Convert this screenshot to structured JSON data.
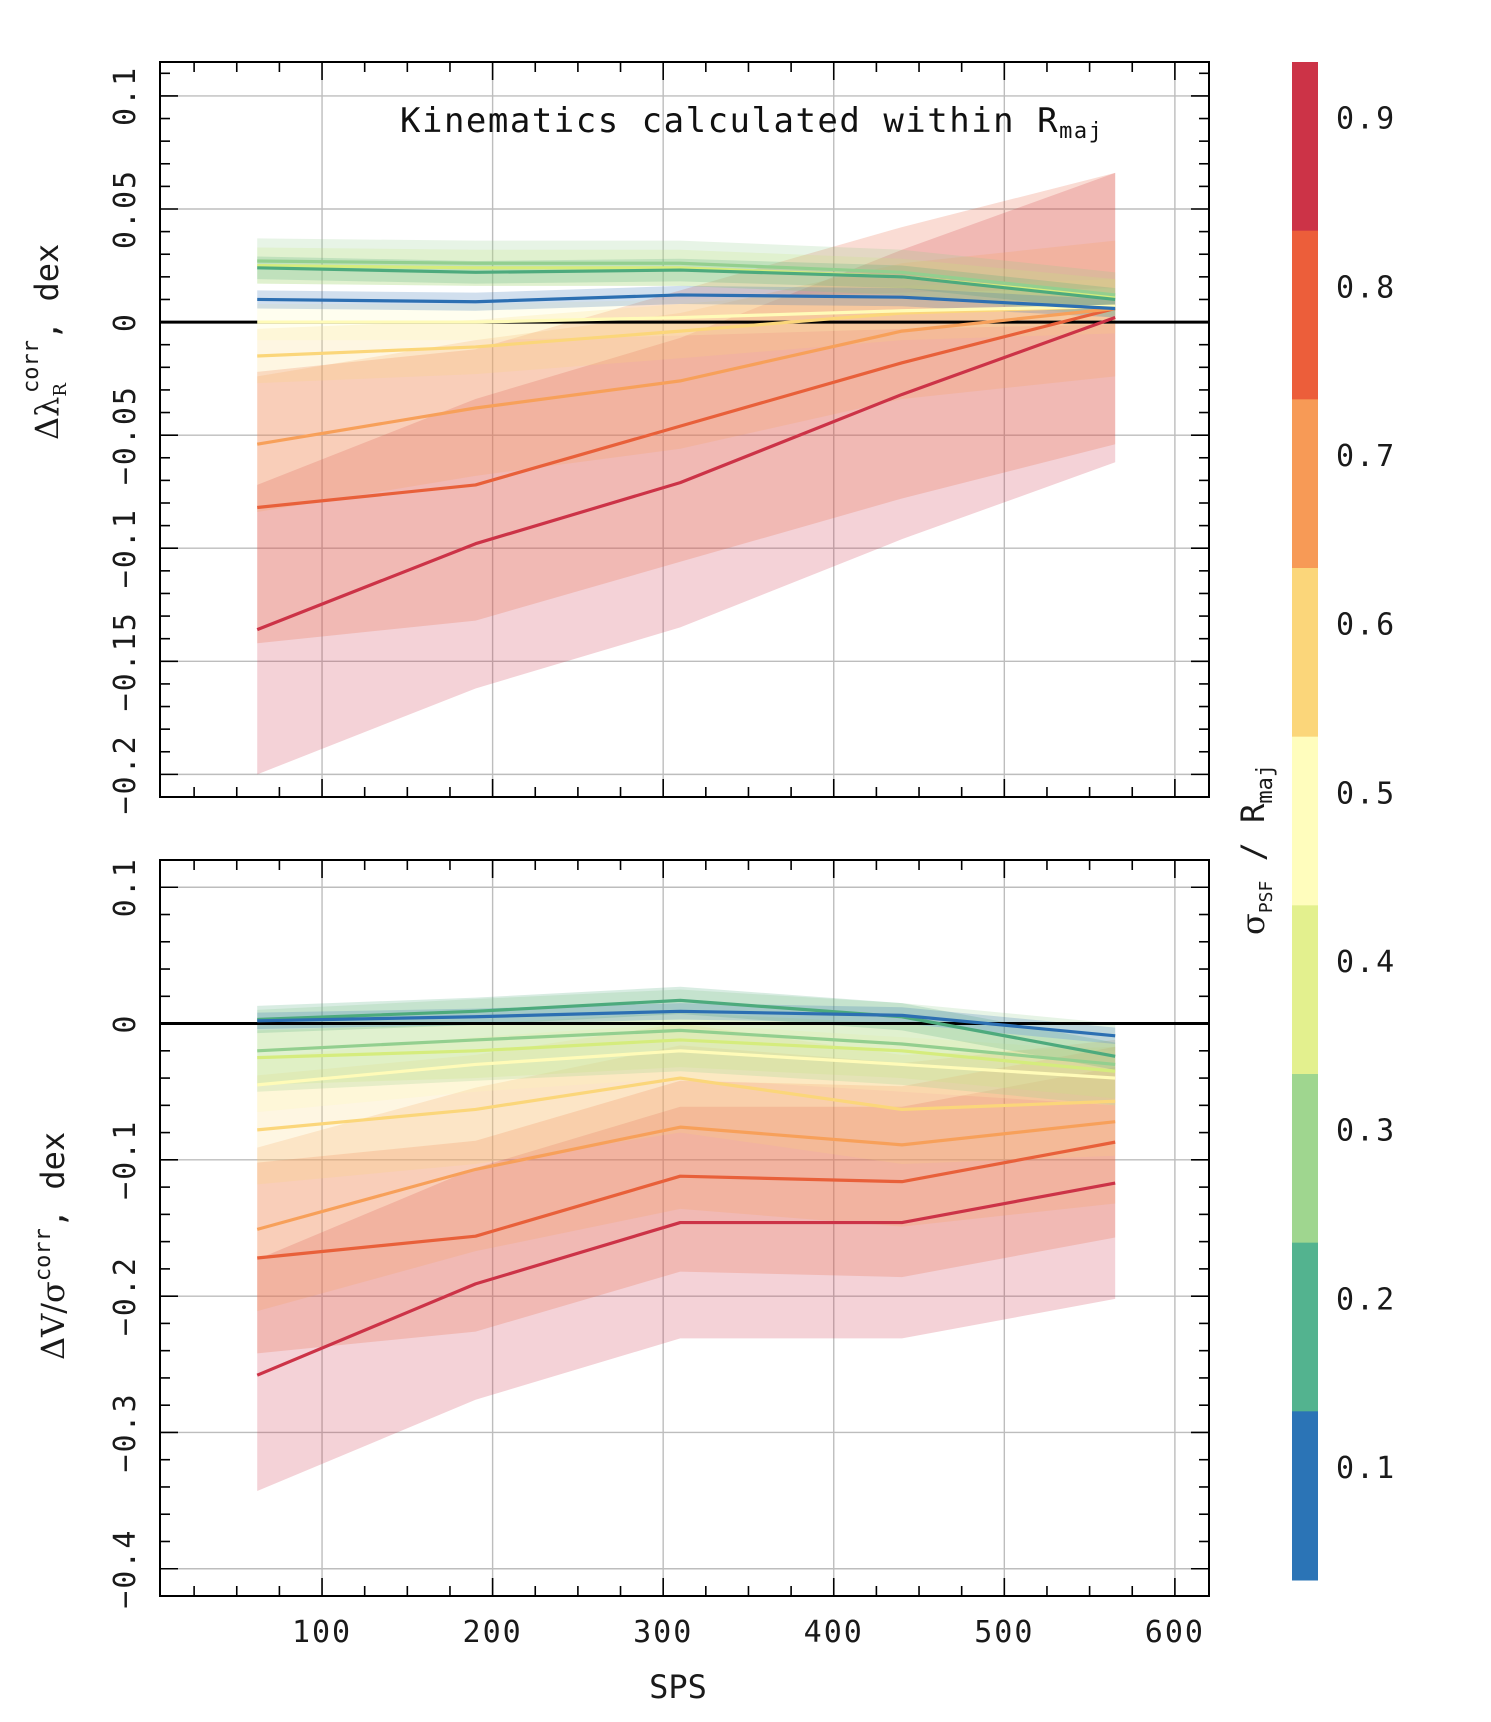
{
  "chart_data": [
    {
      "type": "line",
      "panel": "top",
      "annotation": "Kinematics calculated within R",
      "annotation_sub": "maj",
      "ylabel_main": "Δλ",
      "ylabel_sub": "R",
      "ylabel_sup": "corr",
      "ylabel_suffix": ", dex",
      "xlabel": "",
      "xlim": [
        5,
        620
      ],
      "ylim": [
        -0.21,
        0.115
      ],
      "xticks": [
        100,
        200,
        300,
        400,
        500,
        600
      ],
      "yticks": [
        -0.2,
        -0.15,
        -0.1,
        -0.05,
        0,
        0.05,
        0.1
      ],
      "ytick_labels": [
        "−0.2",
        "−0.15",
        "−0.1",
        "−0.05",
        "0",
        "0.05",
        "0.1"
      ],
      "grid": true,
      "reference_line": 0,
      "x": [
        62,
        190,
        310,
        440,
        565
      ],
      "series": [
        {
          "name": "0.1",
          "color": "#2c6fb2",
          "values": [
            0.01,
            0.009,
            0.012,
            0.011,
            0.006
          ],
          "band": 0.004
        },
        {
          "name": "0.2",
          "color": "#4daa7d",
          "values": [
            0.024,
            0.022,
            0.023,
            0.02,
            0.01
          ],
          "band": 0.005
        },
        {
          "name": "0.3",
          "color": "#93cf8f",
          "values": [
            0.027,
            0.026,
            0.026,
            0.022,
            0.012
          ],
          "band": 0.01
        },
        {
          "name": "0.4",
          "color": "#d5ec7d",
          "values": [
            0.025,
            0.024,
            0.024,
            0.02,
            0.011
          ],
          "band": 0.008
        },
        {
          "name": "0.5",
          "color": "#fffbb8",
          "values": [
            0.0,
            0.0,
            0.002,
            0.005,
            0.007
          ],
          "band": 0.008
        },
        {
          "name": "0.6",
          "color": "#fbd67a",
          "values": [
            -0.015,
            -0.011,
            -0.004,
            0.004,
            0.007
          ],
          "band": 0.012
        },
        {
          "name": "0.7",
          "color": "#f7a05a",
          "values": [
            -0.054,
            -0.038,
            -0.026,
            -0.004,
            0.006
          ],
          "band": 0.03
        },
        {
          "name": "0.8",
          "color": "#e8603a",
          "values": [
            -0.082,
            -0.072,
            -0.046,
            -0.018,
            0.006
          ],
          "band": 0.06
        },
        {
          "name": "0.9",
          "color": "#cc3347",
          "values": [
            -0.136,
            -0.098,
            -0.071,
            -0.032,
            0.002
          ],
          "band": 0.064
        }
      ]
    },
    {
      "type": "line",
      "panel": "bottom",
      "ylabel_main": "ΔV/σ",
      "ylabel_sup": "corr",
      "ylabel_suffix": ", dex",
      "xlabel": "SPS",
      "xlim": [
        5,
        620
      ],
      "ylim": [
        -0.42,
        0.12
      ],
      "xticks": [
        100,
        200,
        300,
        400,
        500,
        600
      ],
      "yticks": [
        -0.4,
        -0.3,
        -0.2,
        -0.1,
        0,
        0.1
      ],
      "ytick_labels": [
        "−0.4",
        "−0.3",
        "−0.2",
        "−0.1",
        "0",
        "0.1"
      ],
      "grid": true,
      "reference_line": 0,
      "x": [
        62,
        190,
        310,
        440,
        565
      ],
      "series": [
        {
          "name": "0.1",
          "color": "#2c6fb2",
          "values": [
            0.002,
            0.005,
            0.009,
            0.006,
            -0.009
          ],
          "band": 0.006
        },
        {
          "name": "0.2",
          "color": "#4daa7d",
          "values": [
            0.003,
            0.009,
            0.017,
            0.005,
            -0.024
          ],
          "band": 0.01
        },
        {
          "name": "0.3",
          "color": "#93cf8f",
          "values": [
            -0.02,
            -0.012,
            -0.005,
            -0.015,
            -0.03
          ],
          "band": 0.03
        },
        {
          "name": "0.4",
          "color": "#d5ec7d",
          "values": [
            -0.025,
            -0.02,
            -0.012,
            -0.02,
            -0.035
          ],
          "band": 0.02
        },
        {
          "name": "0.5",
          "color": "#fffbb8",
          "values": [
            -0.045,
            -0.03,
            -0.02,
            -0.03,
            -0.04
          ],
          "band": 0.02
        },
        {
          "name": "0.6",
          "color": "#fbd67a",
          "values": [
            -0.078,
            -0.063,
            -0.04,
            -0.063,
            -0.057
          ],
          "band": 0.04
        },
        {
          "name": "0.7",
          "color": "#f7a05a",
          "values": [
            -0.151,
            -0.107,
            -0.076,
            -0.089,
            -0.072
          ],
          "band": 0.06
        },
        {
          "name": "0.8",
          "color": "#e8603a",
          "values": [
            -0.172,
            -0.156,
            -0.112,
            -0.116,
            -0.087
          ],
          "band": 0.07
        },
        {
          "name": "0.9",
          "color": "#cc3347",
          "values": [
            -0.258,
            -0.191,
            -0.146,
            -0.146,
            -0.117
          ],
          "band": 0.085
        }
      ]
    }
  ],
  "colorbar": {
    "label_main": "σ",
    "label_sub": "PSF",
    "label_rest": " / R",
    "label_rest_sub": "maj",
    "levels": [
      {
        "label": "0.9",
        "color": "#cc3347"
      },
      {
        "label": "0.8",
        "color": "#ec5e3a"
      },
      {
        "label": "0.7",
        "color": "#f79a56"
      },
      {
        "label": "0.6",
        "color": "#fbd67a"
      },
      {
        "label": "0.5",
        "color": "#fffdbd"
      },
      {
        "label": "0.4",
        "color": "#e3f08e"
      },
      {
        "label": "0.3",
        "color": "#9fd68f"
      },
      {
        "label": "0.2",
        "color": "#53b38f"
      },
      {
        "label": "0.1",
        "color": "#2b74b6"
      }
    ]
  }
}
